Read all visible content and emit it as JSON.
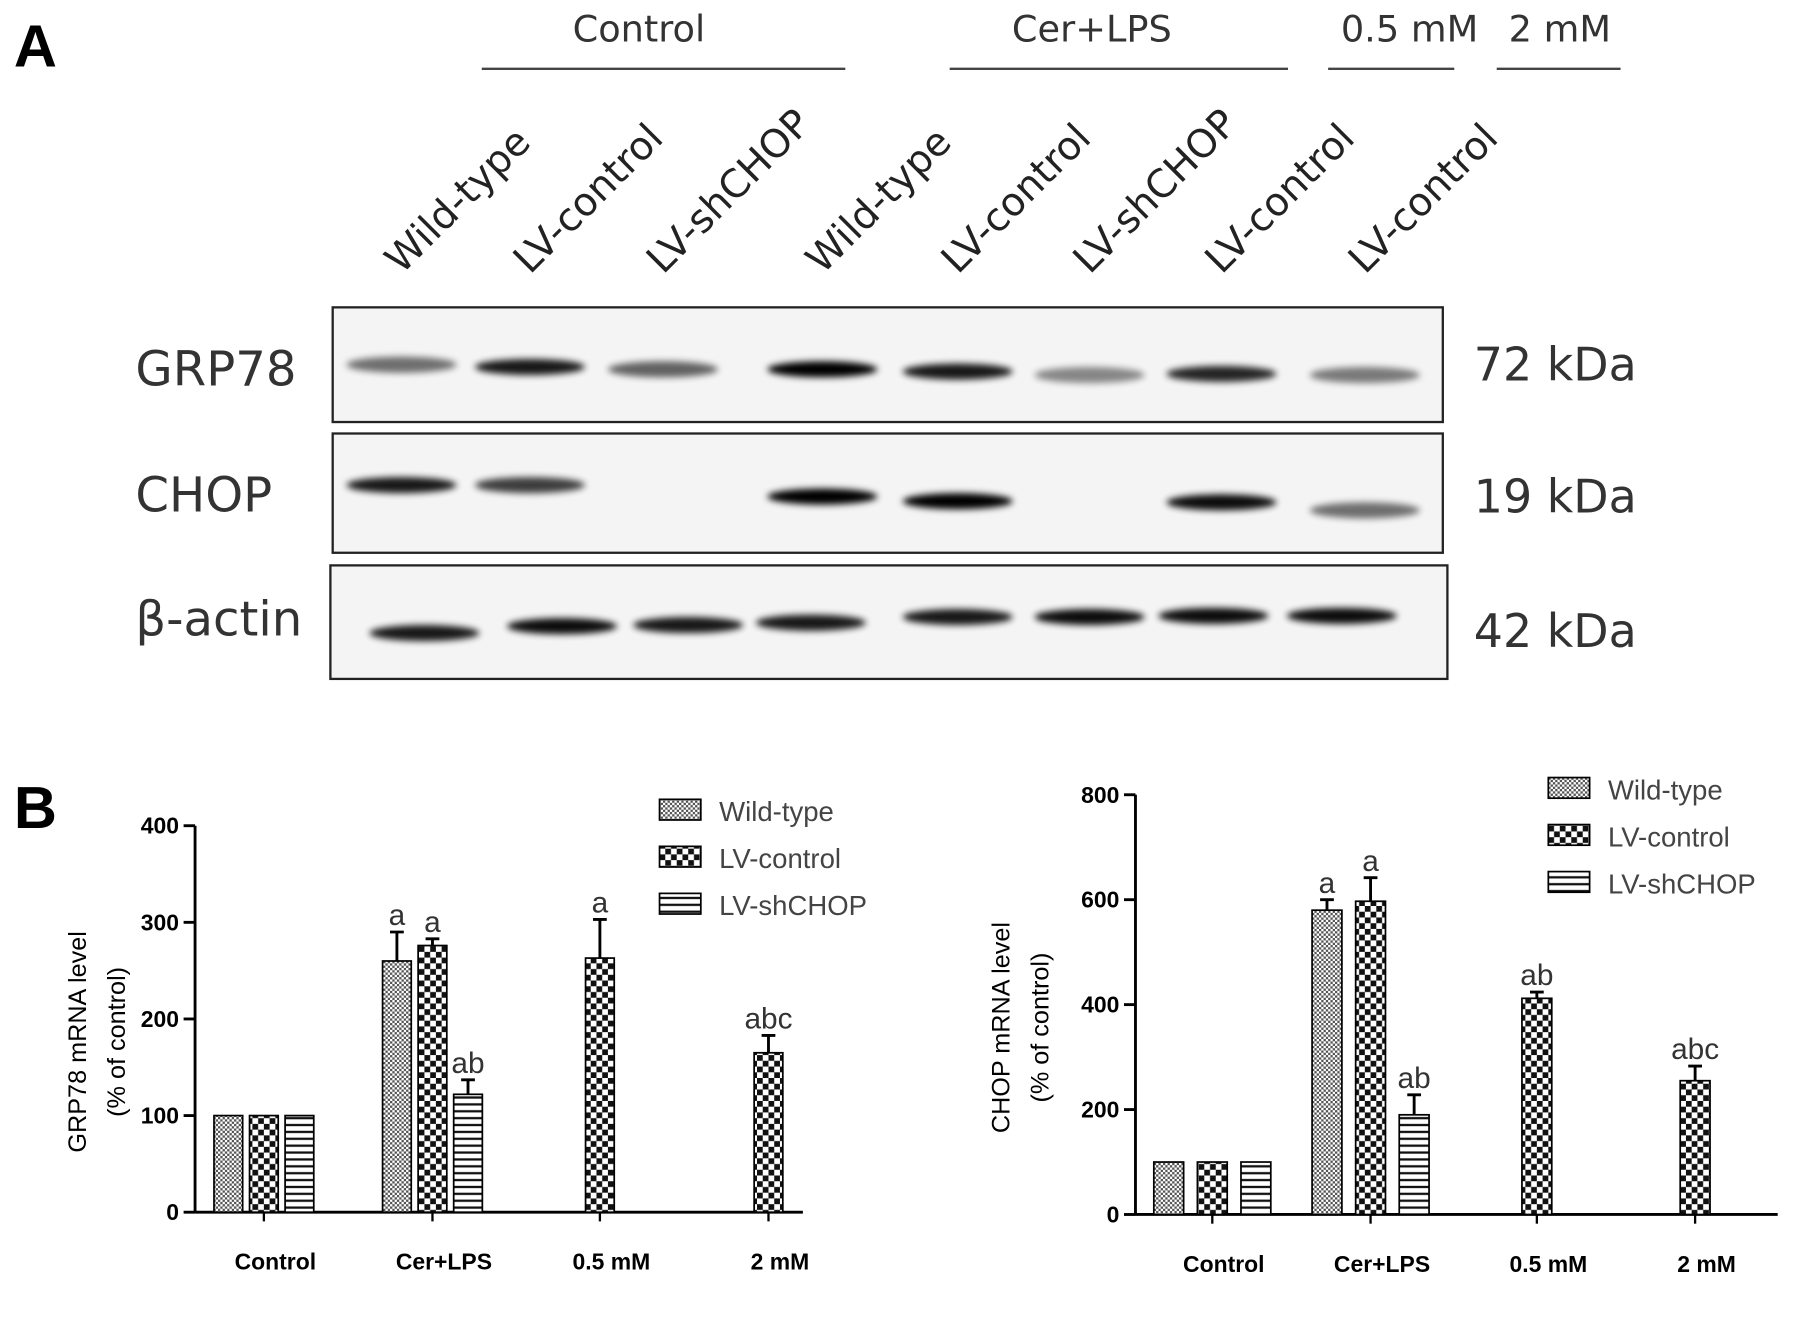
{
  "panel_labels": [
    "A",
    "B"
  ],
  "blot": {
    "groups": [
      "Control",
      "Cer+LPS",
      "0.5 mM",
      "2 mM"
    ],
    "lanes": [
      "Wild-type",
      "LV-control",
      "LV-shCHOP",
      "Wild-type",
      "LV-control",
      "LV-shCHOP",
      "LV-control",
      "LV-control"
    ],
    "proteins": [
      "GRP78",
      "CHOP",
      "β-actin"
    ],
    "sizes": [
      "72 kDa",
      "19 kDa",
      "42 kDa"
    ]
  },
  "chart_data": [
    {
      "type": "bar",
      "ylabel": [
        "GRP78 mRNA level",
        "(% of control)"
      ],
      "categories": [
        "Control",
        "Cer+LPS",
        "0.5 mM",
        "2 mM"
      ],
      "series": [
        {
          "name": "Wild-type",
          "pattern": "dots",
          "values": [
            100,
            260,
            null,
            null
          ],
          "errors": [
            0,
            30,
            null,
            null
          ],
          "annotations": [
            null,
            "a",
            null,
            null
          ]
        },
        {
          "name": "LV-control",
          "pattern": "checker",
          "values": [
            100,
            276,
            263,
            165
          ],
          "errors": [
            0,
            7,
            40,
            18
          ],
          "annotations": [
            null,
            "a",
            "a",
            "abc"
          ]
        },
        {
          "name": "LV-shCHOP",
          "pattern": "hstripes",
          "values": [
            100,
            122,
            null,
            null
          ],
          "errors": [
            0,
            15,
            null,
            null
          ],
          "annotations": [
            null,
            "ab",
            null,
            null
          ]
        }
      ],
      "ylim": [
        0,
        400
      ],
      "yticks": [
        0,
        100,
        200,
        300,
        400
      ],
      "legend": "upper right"
    },
    {
      "type": "bar",
      "ylabel": [
        "CHOP mRNA level",
        "(% of control)"
      ],
      "categories": [
        "Control",
        "Cer+LPS",
        "0.5 mM",
        "2 mM"
      ],
      "series": [
        {
          "name": "Wild-type",
          "pattern": "dots",
          "values": [
            100,
            580,
            null,
            null
          ],
          "errors": [
            0,
            20,
            null,
            null
          ],
          "annotations": [
            null,
            "a",
            null,
            null
          ]
        },
        {
          "name": "LV-control",
          "pattern": "checker",
          "values": [
            100,
            597,
            412,
            255
          ],
          "errors": [
            0,
            45,
            12,
            28
          ],
          "annotations": [
            null,
            "a",
            "ab",
            "abc"
          ]
        },
        {
          "name": "LV-shCHOP",
          "pattern": "hstripes",
          "values": [
            100,
            190,
            null,
            null
          ],
          "errors": [
            0,
            38,
            null,
            null
          ],
          "annotations": [
            null,
            "ab",
            null,
            null
          ]
        }
      ],
      "ylim": [
        0,
        800
      ],
      "yticks": [
        0,
        200,
        400,
        600,
        800
      ],
      "legend": "upper right"
    }
  ]
}
